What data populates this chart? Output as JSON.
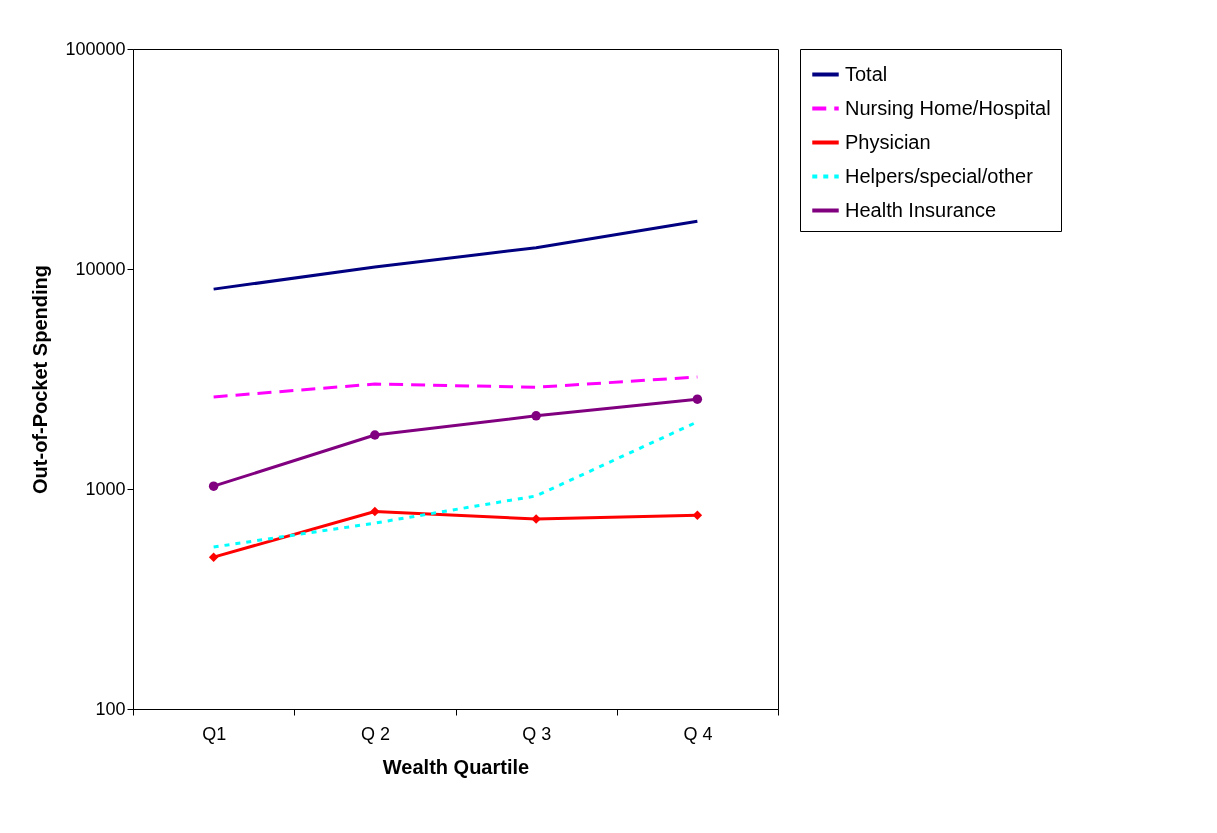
{
  "chart_data": {
    "type": "line",
    "xlabel": "Wealth Quartile",
    "ylabel": "Out-of-Pocket Spending",
    "categories": [
      "Q1",
      "Q 2",
      "Q 3",
      "Q 4"
    ],
    "log": "y",
    "ylim": [
      100,
      100000
    ],
    "yticks": [
      100,
      1000,
      10000,
      100000
    ],
    "grid": false,
    "legend": "right",
    "series": [
      {
        "name": "Total",
        "color": "#000080",
        "line_style": "solid",
        "marker": "none",
        "values": [
          8100,
          10200,
          12500,
          16500
        ]
      },
      {
        "name": "Nursing Home/Hospital",
        "color": "#ff00ff",
        "line_style": "dashed",
        "marker": "none",
        "values": [
          2620,
          3000,
          2900,
          3230
        ]
      },
      {
        "name": "Physician",
        "color": "#ff0000",
        "line_style": "solid",
        "marker": "diamond",
        "values": [
          490,
          790,
          730,
          760
        ]
      },
      {
        "name": "Helpers/special/other",
        "color": "#00ffff",
        "line_style": "dotted",
        "marker": "none",
        "values": [
          545,
          700,
          930,
          2020
        ]
      },
      {
        "name": "Health Insurance",
        "color": "#800080",
        "line_style": "solid",
        "marker": "circle",
        "values": [
          1030,
          1760,
          2150,
          2560
        ]
      }
    ]
  }
}
